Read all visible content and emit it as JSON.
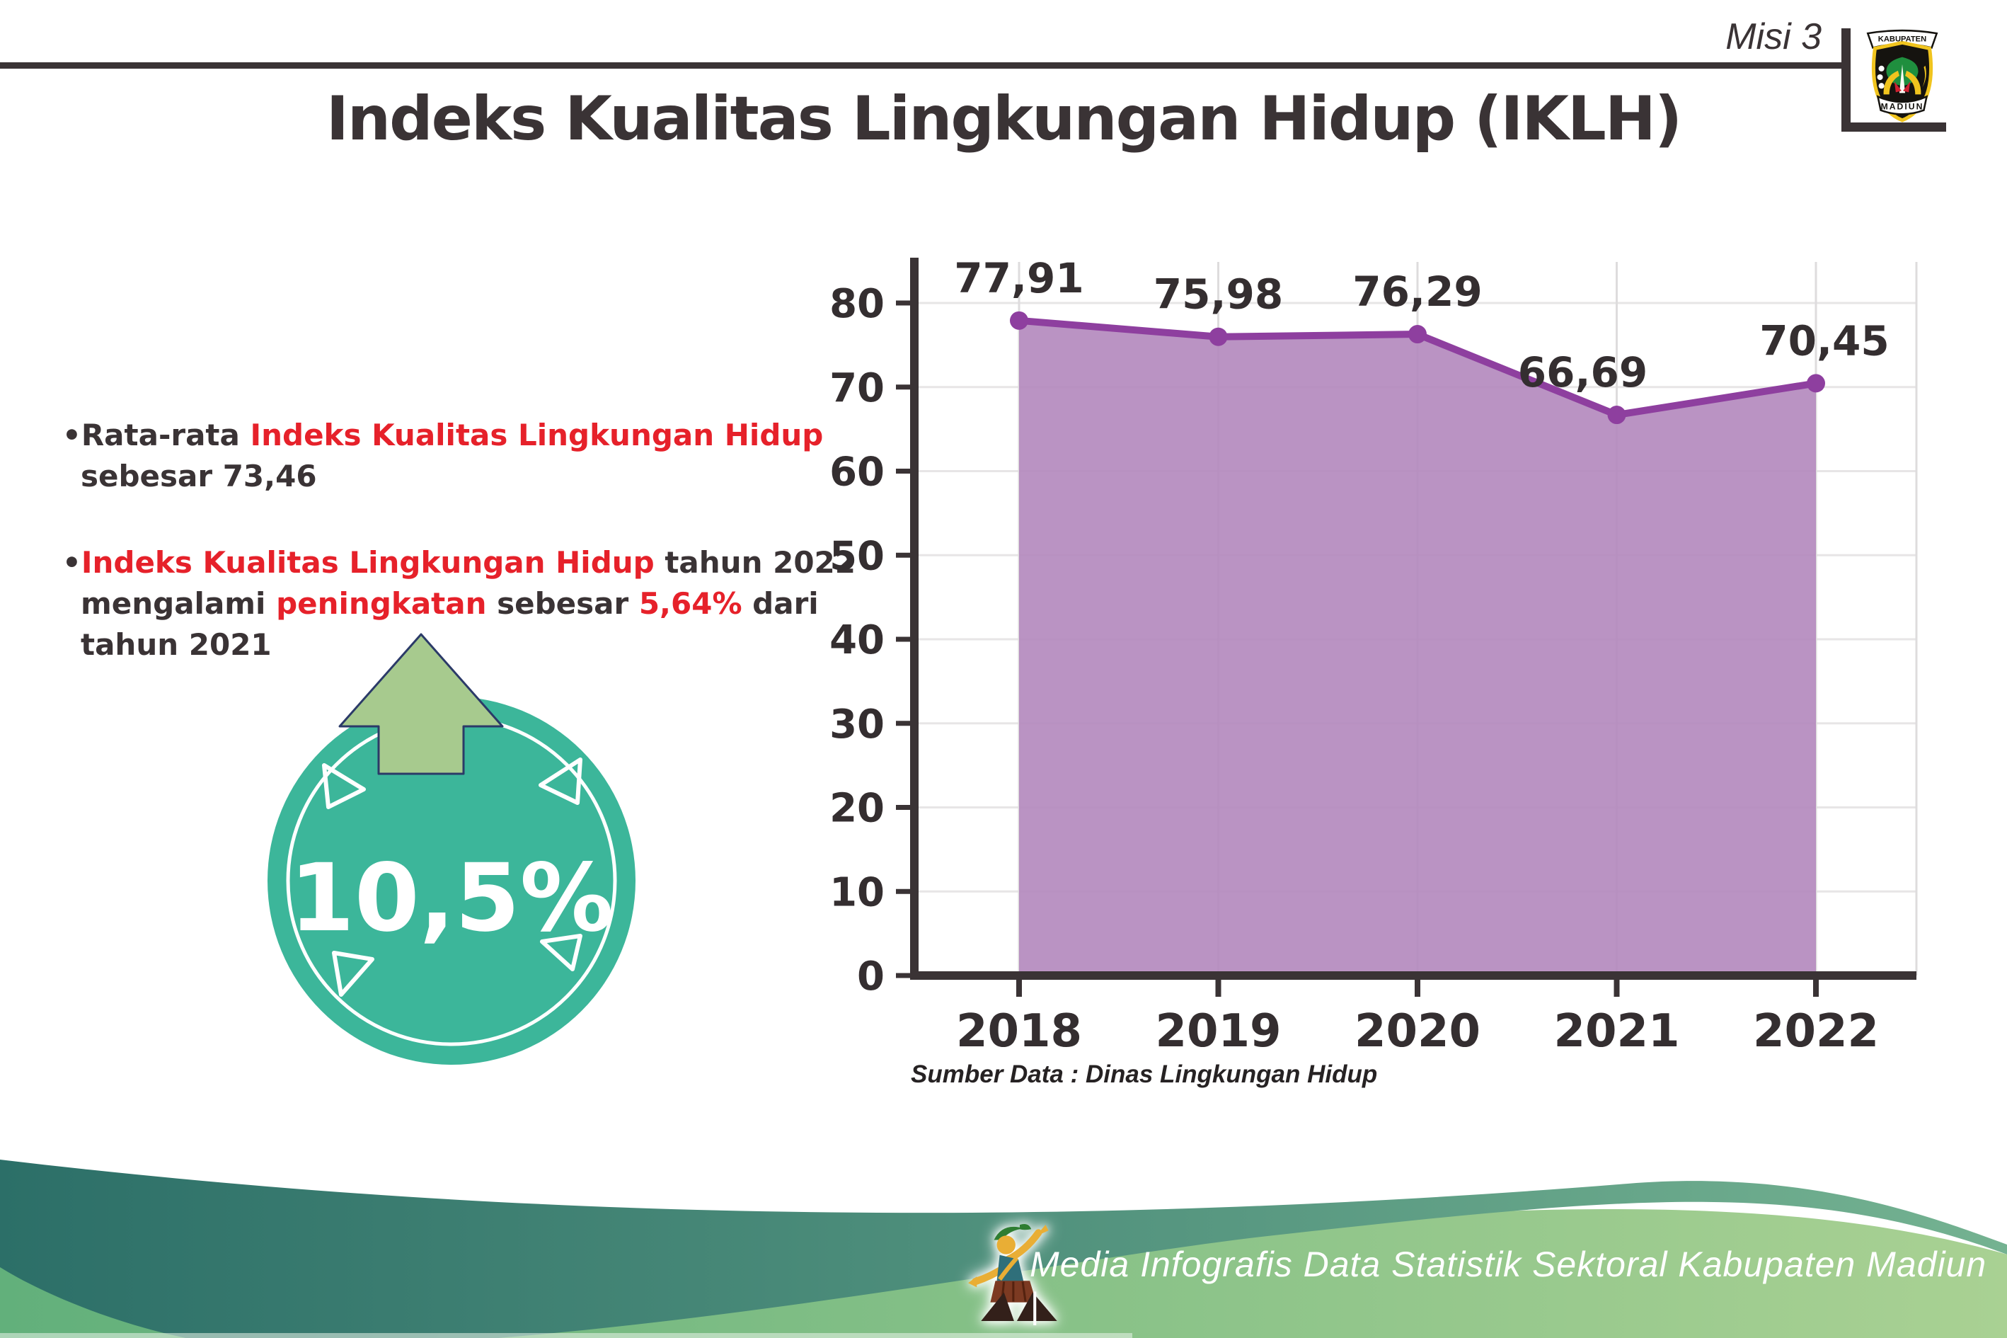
{
  "header": {
    "misi": "Misi 3",
    "title": "Indeks Kualitas Lingkungan Hidup (IKLH)"
  },
  "logo": {
    "banner_top": "KABUPATEN",
    "banner_bottom": "MADIUN"
  },
  "bullets": [
    {
      "segments": [
        {
          "t": "•Rata-rata ",
          "c": "dark"
        },
        {
          "t": "Indeks Kualitas Lingkungan Hidup",
          "c": "red"
        },
        {
          "t": " sebesar 73,46",
          "c": "dark"
        }
      ]
    },
    {
      "segments": [
        {
          "t": "•",
          "c": "dark"
        },
        {
          "t": "Indeks Kualitas Lingkungan Hidup",
          "c": "red"
        },
        {
          "t": " tahun 2022 mengalami ",
          "c": "dark"
        },
        {
          "t": "peningkatan",
          "c": "red"
        },
        {
          "t": " sebesar ",
          "c": "dark"
        },
        {
          "t": "5,64%",
          "c": "red"
        },
        {
          "t": " dari tahun 2021",
          "c": "dark"
        }
      ]
    }
  ],
  "badge": {
    "value": "10,5%",
    "circle_color": "#3cb69a",
    "arrow_color": "#a7ca8e",
    "arrow_outline": "#2b3a68"
  },
  "chart_data": {
    "type": "area",
    "title": "",
    "xlabel": "",
    "ylabel": "",
    "categories": [
      "2018",
      "2019",
      "2020",
      "2021",
      "2022"
    ],
    "values": [
      77.91,
      75.98,
      76.29,
      66.69,
      70.45
    ],
    "value_labels": [
      "77,91",
      "75,98",
      "76,29",
      "66,69",
      "70,45"
    ],
    "y_ticks": [
      0,
      10,
      20,
      30,
      40,
      50,
      60,
      70,
      80
    ],
    "ylim": [
      0,
      85
    ],
    "grid": true,
    "legend": false,
    "fill_color": "#b287bd",
    "line_color": "#8e3f9f",
    "axis_color": "#3a3335"
  },
  "source_note": "Sumber Data : Dinas Lingkungan Hidup",
  "footer": {
    "credit": "Media Infografis Data Statistik Sektoral Kabupaten Madiun |"
  },
  "colors": {
    "text_dark": "#3a3335",
    "accent_red": "#e6212a",
    "footer_teal": "#2c6f68",
    "footer_green": "#7cbd85"
  }
}
